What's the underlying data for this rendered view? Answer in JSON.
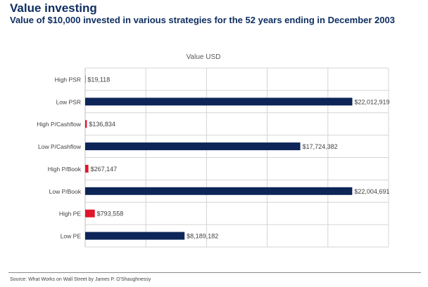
{
  "header": {
    "title": "Value investing",
    "subtitle": "Value of $10,000 invested in various strategies for the 52 years ending in December 2003"
  },
  "footer": {
    "source": "Source: What Works on Wall Street by James P. O'Shaughnessy"
  },
  "chart_data": {
    "type": "bar",
    "orientation": "horizontal",
    "title": "Value USD",
    "categories": [
      "High PSR",
      "Low PSR",
      "High P/Cashflow",
      "Low P/Cashflow",
      "High P/Book",
      "Low P/Book",
      "High PE",
      "Low PE"
    ],
    "values": [
      19118,
      22012919,
      136834,
      17724382,
      267147,
      22004691,
      793558,
      8189182
    ],
    "data_labels": [
      "$19,118",
      "$22,012,919",
      "$136,834",
      "$17,724,382",
      "$267,147",
      "$22,004,691",
      "$793,558",
      "$8,189,182"
    ],
    "xlim": [
      0,
      25000000
    ],
    "grid": true,
    "legend": "none",
    "colors": {
      "high": "#e0162b",
      "low": "#0d2557",
      "grid": "#d4d4d4",
      "axis": "#bfbfbf",
      "text": "#404040"
    }
  }
}
